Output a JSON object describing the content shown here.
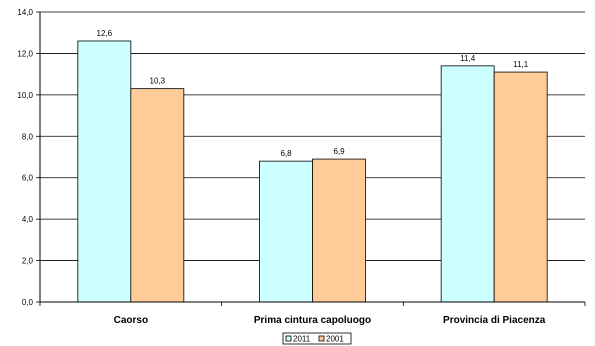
{
  "chart_data": {
    "type": "bar",
    "categories": [
      "Caorso",
      "Prima cintura capoluogo",
      "Provincia di Piacenza"
    ],
    "series": [
      {
        "name": "2011",
        "values": [
          12.6,
          6.8,
          11.4
        ],
        "color": "#ccffff",
        "labels": [
          "12,6",
          "6,8",
          "11,4"
        ]
      },
      {
        "name": "2001",
        "values": [
          10.3,
          6.9,
          11.1
        ],
        "color": "#ffcc99",
        "labels": [
          "10,3",
          "6,9",
          "11,1"
        ]
      }
    ],
    "ylim": [
      0,
      14
    ],
    "yticks": [
      0,
      2,
      4,
      6,
      8,
      10,
      12,
      14
    ],
    "ytick_labels": [
      "0,0",
      "2,0",
      "4,0",
      "6,0",
      "8,0",
      "10,0",
      "12,0",
      "14,0"
    ],
    "grid": true,
    "legend": "bottom",
    "title": "",
    "xlabel": "",
    "ylabel": ""
  }
}
